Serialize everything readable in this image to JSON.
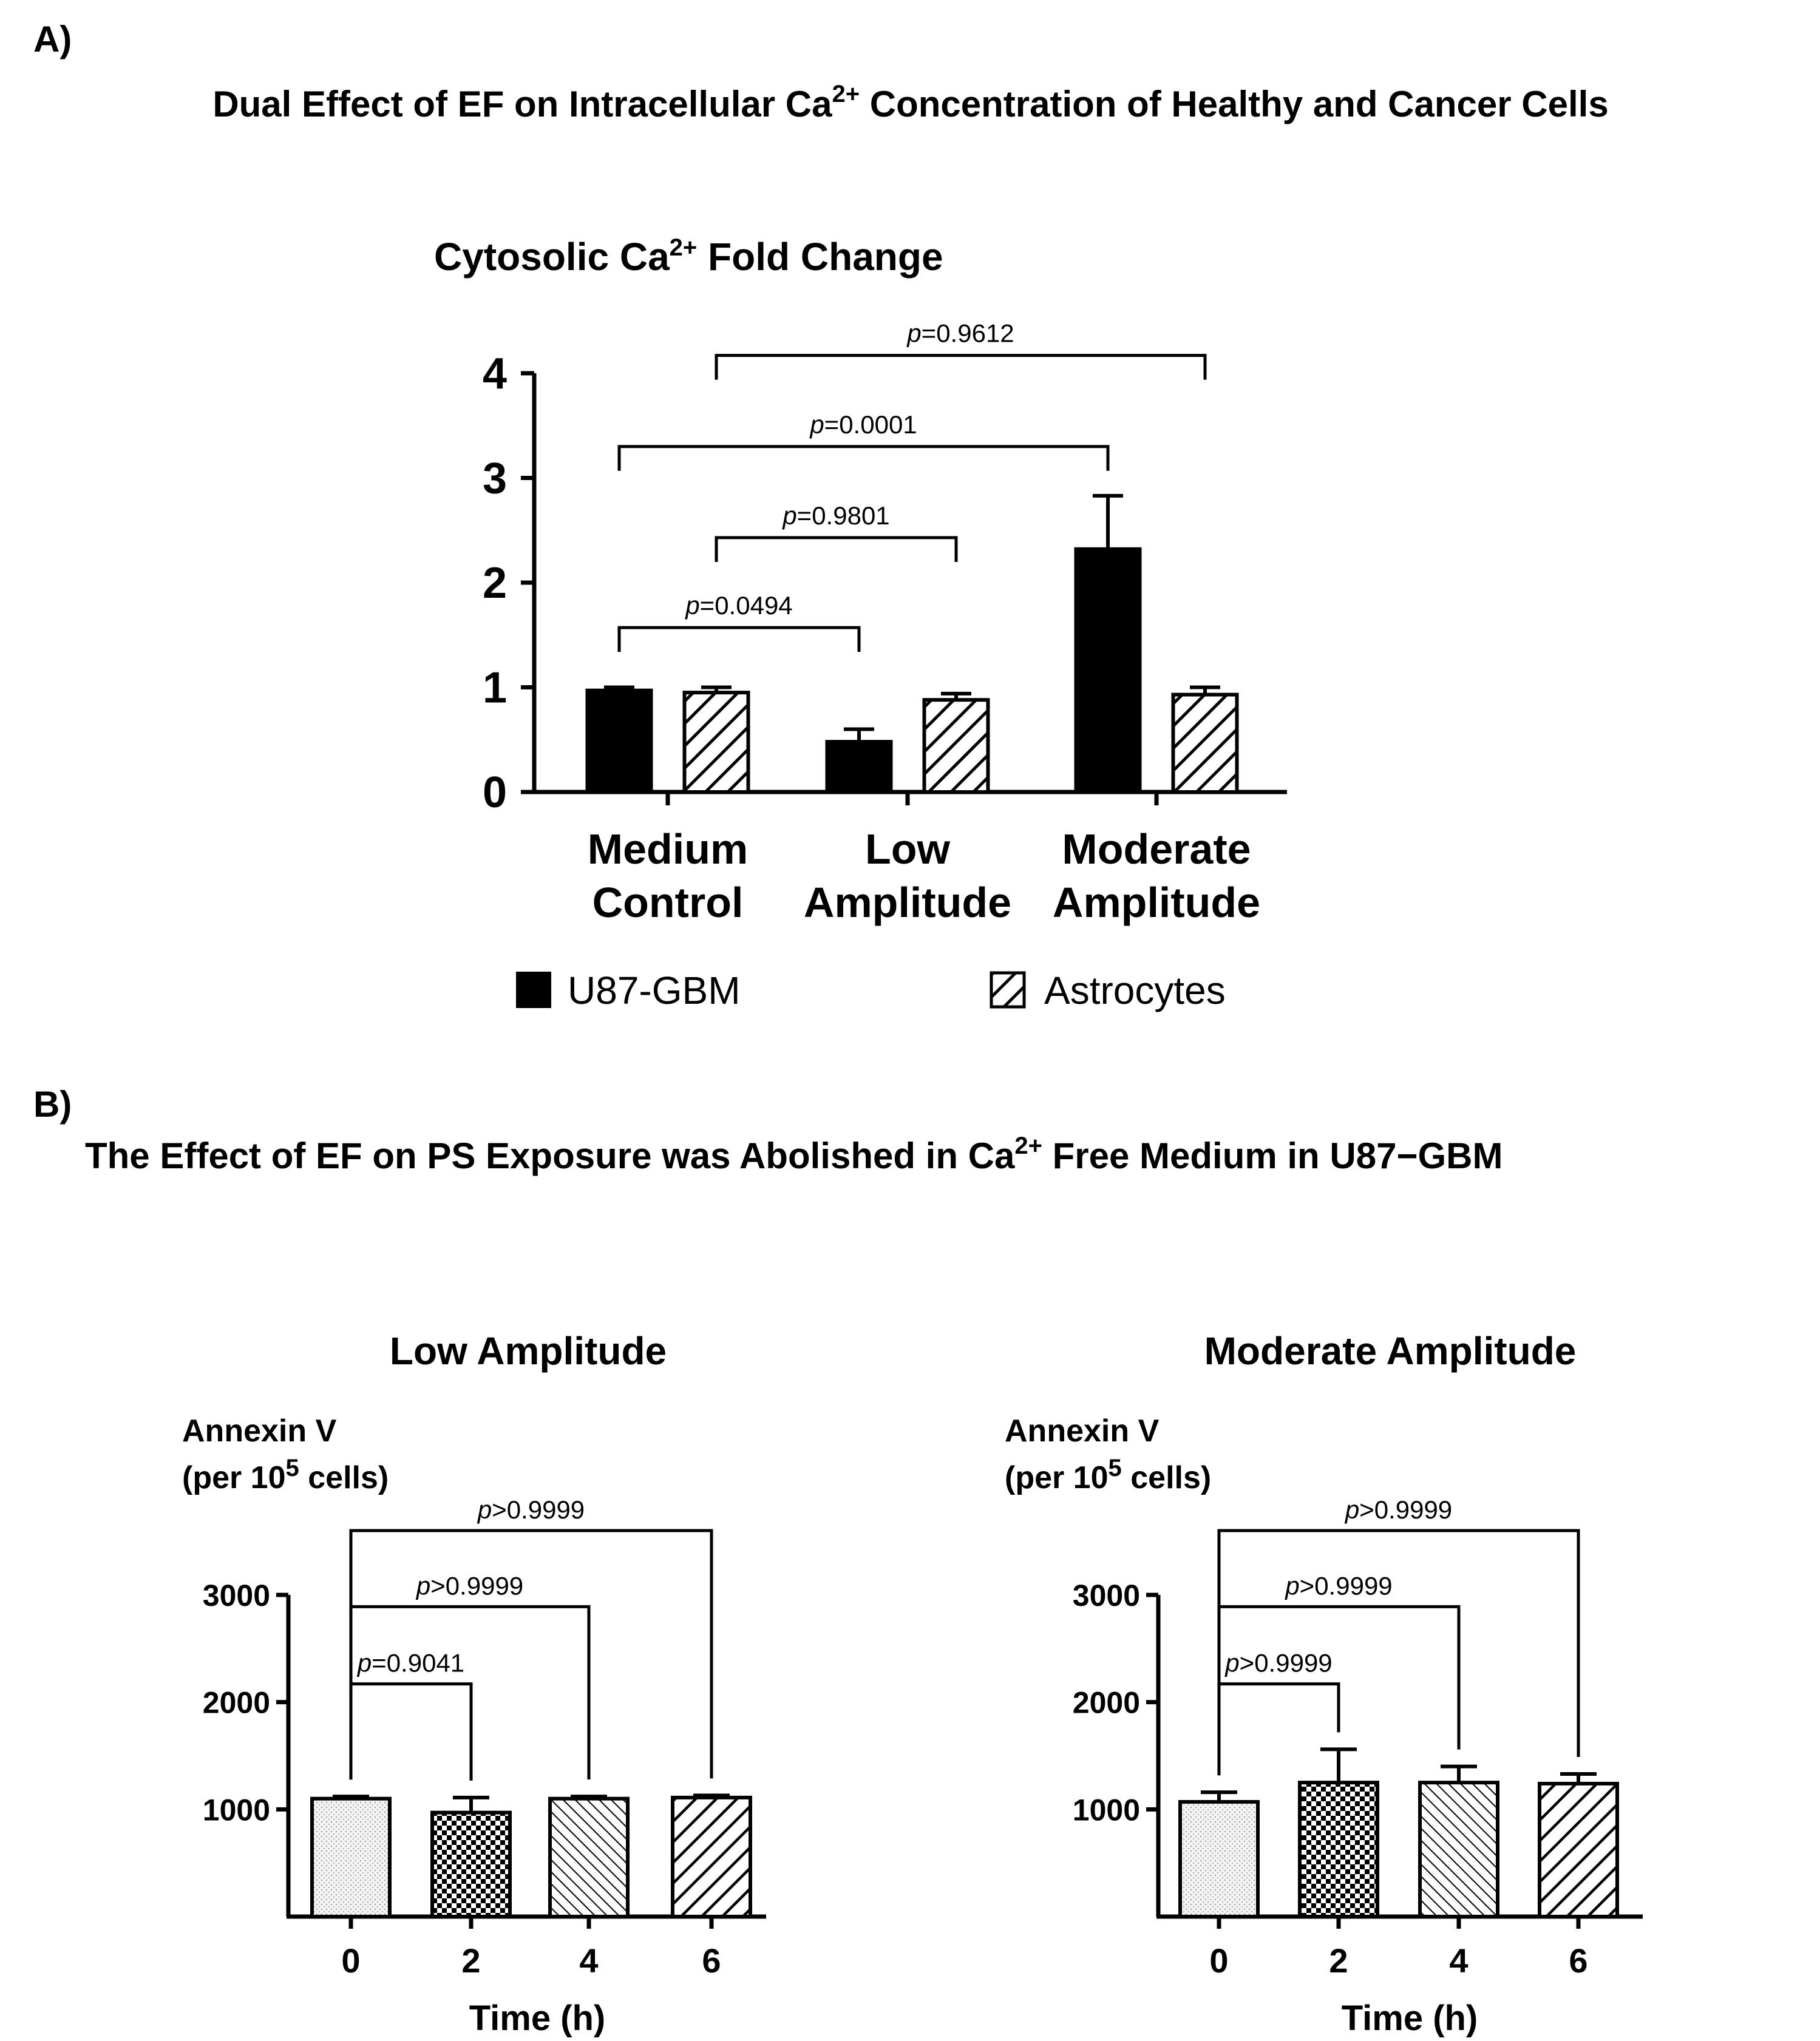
{
  "panel_a": {
    "label": "A)",
    "heading_main": "Dual Effect of EF on Intracellular Ca",
    "heading_sup": "2+",
    "heading_rest": " Concentration of Healthy and Cancer Cells"
  },
  "panel_b": {
    "label": "B)",
    "heading_main": "The Effect of EF on PS Exposure was Abolished in Ca",
    "heading_sup": "2+",
    "heading_rest": " Free Medium in U87−GBM"
  },
  "chart_data": [
    {
      "type": "bar",
      "title": "Cytosolic Ca",
      "title_sup": "2+",
      "title_rest": " Fold Change",
      "categories": [
        [
          "Medium",
          "Control"
        ],
        [
          "Low",
          "Amplitude"
        ],
        [
          "Moderate",
          "Amplitude"
        ]
      ],
      "series": [
        {
          "name": "U87-GBM",
          "fill": "solid",
          "values": [
            0.97,
            0.48,
            2.32
          ],
          "errors": [
            0.03,
            0.12,
            0.51
          ]
        },
        {
          "name": "Astrocytes",
          "fill": "diagonal",
          "values": [
            0.95,
            0.88,
            0.93
          ],
          "errors": [
            0.05,
            0.06,
            0.07
          ]
        }
      ],
      "ylim": [
        0,
        4
      ],
      "yticks": [
        "0",
        "1",
        "2",
        "3",
        "4"
      ],
      "comparisons": [
        {
          "p_italic": "p",
          "text": "=0.0494",
          "from": [
            0,
            0
          ],
          "to": [
            1,
            0
          ],
          "y": 1.57
        },
        {
          "p_italic": "p",
          "text": "=0.9801",
          "from": [
            0,
            1
          ],
          "to": [
            1,
            1
          ],
          "y": 2.43
        },
        {
          "p_italic": "p",
          "text": "=0.0001",
          "from": [
            0,
            0
          ],
          "to": [
            2,
            0
          ],
          "y": 3.3
        },
        {
          "p_italic": "p",
          "text": "=0.9612",
          "from": [
            0,
            1
          ],
          "to": [
            2,
            1
          ],
          "y": 4.17
        }
      ],
      "legend": [
        "U87-GBM",
        "Astrocytes"
      ]
    },
    {
      "type": "bar",
      "title": "Low Amplitude",
      "ylabel_line1": "Annexin V",
      "ylabel_line2_pre": "(per 10",
      "ylabel_line2_sup": "5",
      "ylabel_line2_post": " cells)",
      "xlabel": "Time (h)",
      "categories": [
        "0",
        "2",
        "4",
        "6"
      ],
      "values": [
        1100,
        970,
        1100,
        1110
      ],
      "errors": [
        20,
        140,
        20,
        20
      ],
      "fills": [
        "light-dots",
        "checker",
        "diag-fine",
        "diag-coarse"
      ],
      "ylim": [
        0,
        3000
      ],
      "yticks": [
        "1000",
        "2000",
        "3000"
      ],
      "comparisons": [
        {
          "p_italic": "p",
          "text": "=0.9041",
          "from": 0,
          "to": 1,
          "y": 2170
        },
        {
          "p_italic": "p",
          "text": ">0.9999",
          "from": 0,
          "to": 2,
          "y": 2890
        },
        {
          "p_italic": "p",
          "text": ">0.9999",
          "from": 0,
          "to": 3,
          "y": 3600
        }
      ]
    },
    {
      "type": "bar",
      "title": "Moderate Amplitude",
      "ylabel_line1": "Annexin V",
      "ylabel_line2_pre": "(per 10",
      "ylabel_line2_sup": "5",
      "ylabel_line2_post": " cells)",
      "xlabel": "Time (h)",
      "categories": [
        "0",
        "2",
        "4",
        "6"
      ],
      "values": [
        1070,
        1250,
        1250,
        1240
      ],
      "errors": [
        90,
        310,
        150,
        90
      ],
      "fills": [
        "light-dots",
        "checker",
        "diag-fine",
        "diag-coarse"
      ],
      "ylim": [
        0,
        3000
      ],
      "yticks": [
        "1000",
        "2000",
        "3000"
      ],
      "comparisons": [
        {
          "p_italic": "p",
          "text": ">0.9999",
          "from": 0,
          "to": 1,
          "y": 2170
        },
        {
          "p_italic": "p",
          "text": ">0.9999",
          "from": 0,
          "to": 2,
          "y": 2890
        },
        {
          "p_italic": "p",
          "text": ">0.9999",
          "from": 0,
          "to": 3,
          "y": 3600
        }
      ]
    }
  ]
}
